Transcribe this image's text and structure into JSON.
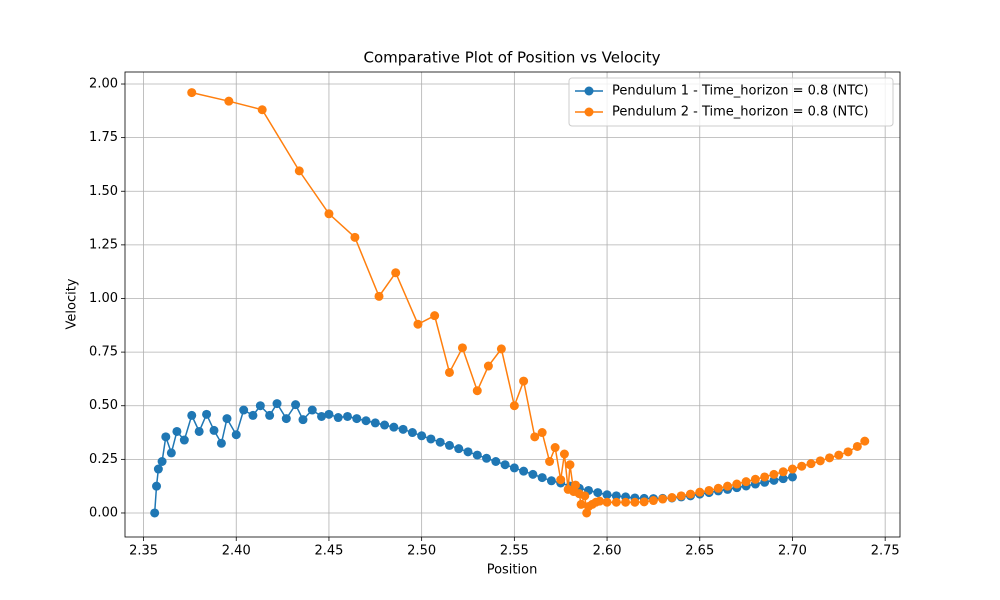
{
  "chart_data": {
    "type": "line",
    "title": "Comparative Plot of Position vs Velocity",
    "xlabel": "Position",
    "ylabel": "Velocity",
    "xlim": [
      2.34,
      2.758
    ],
    "ylim": [
      -0.112,
      2.056
    ],
    "xticks": [
      2.35,
      {
        "value": 2.4,
        "label": "2.40"
      },
      2.45,
      {
        "value": 2.5,
        "label": "2.50"
      },
      2.55,
      {
        "value": 2.6,
        "label": "2.60"
      },
      2.65,
      {
        "value": 2.7,
        "label": "2.70"
      },
      2.75
    ],
    "yticks": [
      {
        "value": 0,
        "label": "0.00"
      },
      0.25,
      {
        "value": 0.5,
        "label": "0.50"
      },
      0.75,
      {
        "value": 1,
        "label": "1.00"
      },
      1.25,
      {
        "value": 1.5,
        "label": "1.50"
      },
      1.75,
      {
        "value": 2,
        "label": "2.00"
      }
    ],
    "grid": true,
    "legend": "upper right",
    "series": [
      {
        "name": "Pendulum 1 - Time_horizon = 0.8 (NTC)",
        "color": "#1f77b4",
        "x": [
          2.356,
          2.357,
          2.358,
          2.36,
          2.362,
          2.365,
          2.368,
          2.372,
          2.376,
          2.38,
          2.384,
          2.388,
          2.392,
          2.395,
          2.4,
          2.404,
          2.409,
          2.413,
          2.418,
          2.422,
          2.427,
          2.432,
          2.436,
          2.441,
          2.446,
          2.45,
          2.455,
          2.46,
          2.465,
          2.47,
          2.475,
          2.48,
          2.485,
          2.49,
          2.495,
          2.5,
          2.505,
          2.51,
          2.515,
          2.52,
          2.525,
          2.53,
          2.535,
          2.54,
          2.545,
          2.55,
          2.555,
          2.56,
          2.565,
          2.57,
          2.575,
          2.58,
          2.585,
          2.59,
          2.595,
          2.6,
          2.605,
          2.61,
          2.615,
          2.62,
          2.625,
          2.63,
          2.635,
          2.64,
          2.645,
          2.65,
          2.655,
          2.66,
          2.665,
          2.67,
          2.675,
          2.68,
          2.685,
          2.69,
          2.695,
          2.7
        ],
        "values": [
          0,
          0.125,
          0.205,
          0.24,
          0.355,
          0.28,
          0.38,
          0.34,
          0.455,
          0.38,
          0.46,
          0.385,
          0.325,
          0.44,
          0.365,
          0.48,
          0.455,
          0.5,
          0.455,
          0.51,
          0.44,
          0.505,
          0.435,
          0.48,
          0.45,
          0.46,
          0.445,
          0.45,
          0.44,
          0.43,
          0.42,
          0.41,
          0.4,
          0.39,
          0.375,
          0.36,
          0.345,
          0.33,
          0.315,
          0.3,
          0.285,
          0.27,
          0.255,
          0.24,
          0.225,
          0.21,
          0.195,
          0.18,
          0.165,
          0.15,
          0.14,
          0.125,
          0.115,
          0.105,
          0.095,
          0.085,
          0.08,
          0.075,
          0.07,
          0.068,
          0.067,
          0.068,
          0.07,
          0.075,
          0.08,
          0.088,
          0.095,
          0.103,
          0.11,
          0.118,
          0.126,
          0.135,
          0.143,
          0.152,
          0.16,
          0.168
        ]
      },
      {
        "name": "Pendulum 2 - Time_horizon = 0.8 (NTC)",
        "color": "#ff7f0e",
        "x": [
          2.376,
          2.396,
          2.414,
          2.434,
          2.45,
          2.464,
          2.477,
          2.486,
          2.498,
          2.507,
          2.515,
          2.522,
          2.53,
          2.536,
          2.543,
          2.55,
          2.555,
          2.561,
          2.565,
          2.569,
          2.572,
          2.575,
          2.577,
          2.579,
          2.58,
          2.582,
          2.583,
          2.585,
          2.586,
          2.588,
          2.589,
          2.59,
          2.592,
          2.594,
          2.596,
          2.6,
          2.605,
          2.61,
          2.615,
          2.62,
          2.625,
          2.63,
          2.635,
          2.64,
          2.645,
          2.65,
          2.655,
          2.66,
          2.665,
          2.67,
          2.675,
          2.68,
          2.685,
          2.69,
          2.695,
          2.7,
          2.705,
          2.71,
          2.715,
          2.72,
          2.725,
          2.73,
          2.735,
          2.739
        ],
        "values": [
          1.96,
          1.92,
          1.88,
          1.595,
          1.395,
          1.285,
          1.01,
          1.12,
          0.88,
          0.92,
          0.655,
          0.77,
          0.57,
          0.685,
          0.765,
          0.5,
          0.615,
          0.355,
          0.375,
          0.24,
          0.305,
          0.155,
          0.275,
          0.11,
          0.225,
          0.1,
          0.13,
          0.09,
          0.04,
          0.08,
          0,
          0.03,
          0.04,
          0.05,
          0.055,
          0.05,
          0.05,
          0.05,
          0.05,
          0.052,
          0.058,
          0.065,
          0.072,
          0.08,
          0.088,
          0.097,
          0.105,
          0.115,
          0.125,
          0.135,
          0.146,
          0.157,
          0.168,
          0.18,
          0.192,
          0.205,
          0.218,
          0.23,
          0.243,
          0.257,
          0.27,
          0.285,
          0.31,
          0.335
        ]
      }
    ]
  }
}
